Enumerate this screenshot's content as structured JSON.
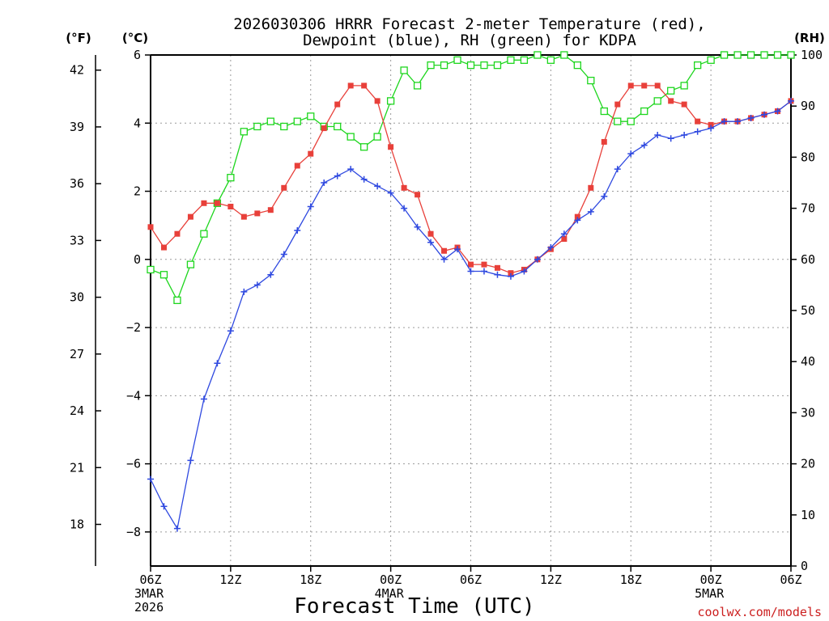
{
  "colors": {
    "temp": "#e8403a",
    "dewpoint": "#2f49e0",
    "rh": "#1ed61e",
    "axis": "#000000",
    "grid": "#9a9a9a",
    "credit": "#cc2020"
  },
  "chart_data": {
    "type": "line",
    "title_line1": "2026030306 HRRR Forecast 2-meter Temperature (red),",
    "title_line2": "Dewpoint (blue), RH (green) for KDPA",
    "xlabel": "Forecast Time (UTC)",
    "credit": "coolwx.com/models",
    "units": {
      "fahrenheit": "(°F)",
      "celsius": "(°C)",
      "rh": "(RH)"
    },
    "x_ticks": [
      {
        "hour": 0,
        "label": "06Z",
        "sub1": "3MAR",
        "sub2": "2026"
      },
      {
        "hour": 6,
        "label": "12Z",
        "sub1": "",
        "sub2": ""
      },
      {
        "hour": 12,
        "label": "18Z",
        "sub1": "",
        "sub2": ""
      },
      {
        "hour": 18,
        "label": "00Z",
        "sub1": "4MAR",
        "sub2": ""
      },
      {
        "hour": 24,
        "label": "06Z",
        "sub1": "",
        "sub2": ""
      },
      {
        "hour": 30,
        "label": "12Z",
        "sub1": "",
        "sub2": ""
      },
      {
        "hour": 36,
        "label": "18Z",
        "sub1": "",
        "sub2": ""
      },
      {
        "hour": 42,
        "label": "00Z",
        "sub1": "5MAR",
        "sub2": ""
      },
      {
        "hour": 48,
        "label": "06Z",
        "sub1": "",
        "sub2": ""
      }
    ],
    "x_range_hours": [
      0,
      48
    ],
    "celsius_axis": {
      "range": [
        -9,
        6
      ],
      "ticks": [
        -8,
        -6,
        -4,
        -2,
        0,
        2,
        4,
        6
      ]
    },
    "fahrenheit_axis": {
      "ticks": [
        18,
        21,
        24,
        27,
        30,
        33,
        36,
        39,
        42
      ]
    },
    "rh_axis": {
      "range": [
        0,
        100
      ],
      "ticks": [
        0,
        10,
        20,
        30,
        40,
        50,
        60,
        70,
        80,
        90,
        100
      ]
    },
    "series": [
      {
        "name": "Temperature",
        "unit": "C",
        "values": [
          0.95,
          0.35,
          0.75,
          1.25,
          1.65,
          1.65,
          1.55,
          1.25,
          1.35,
          1.45,
          2.1,
          2.75,
          3.1,
          3.85,
          4.55,
          5.1,
          5.1,
          4.65,
          3.3,
          2.1,
          1.9,
          0.75,
          0.25,
          0.35,
          -0.15,
          -0.15,
          -0.25,
          -0.4,
          -0.3,
          0,
          0.3,
          0.6,
          1.25,
          2.1,
          3.45,
          4.55,
          5.1,
          5.1,
          5.1,
          4.65,
          4.55,
          4.05,
          3.95,
          4.05,
          4.05,
          4.15,
          4.25,
          4.35,
          4.65
        ]
      },
      {
        "name": "Dewpoint",
        "unit": "C",
        "values": [
          -6.45,
          -7.25,
          -7.9,
          -5.9,
          -4.1,
          -3.05,
          -2.1,
          -0.95,
          -0.75,
          -0.45,
          0.15,
          0.85,
          1.55,
          2.25,
          2.45,
          2.65,
          2.35,
          2.15,
          1.95,
          1.5,
          0.95,
          0.5,
          0,
          0.3,
          -0.35,
          -0.35,
          -0.45,
          -0.5,
          -0.35,
          0,
          0.35,
          0.75,
          1.15,
          1.4,
          1.85,
          2.65,
          3.1,
          3.35,
          3.65,
          3.55,
          3.65,
          3.75,
          3.85,
          4.05,
          4.05,
          4.15,
          4.25,
          4.35,
          4.65
        ]
      },
      {
        "name": "RH",
        "unit": "%",
        "values": [
          58,
          57,
          52,
          59,
          65,
          71,
          76,
          85,
          86,
          87,
          86,
          87,
          88,
          86,
          86,
          84,
          82,
          84,
          91,
          97,
          94,
          98,
          98,
          99,
          98,
          98,
          98,
          99,
          99,
          100,
          99,
          100,
          98,
          95,
          89,
          87,
          87,
          89,
          91,
          93,
          94,
          98,
          99,
          100,
          100,
          100,
          100,
          100,
          100
        ]
      }
    ]
  }
}
